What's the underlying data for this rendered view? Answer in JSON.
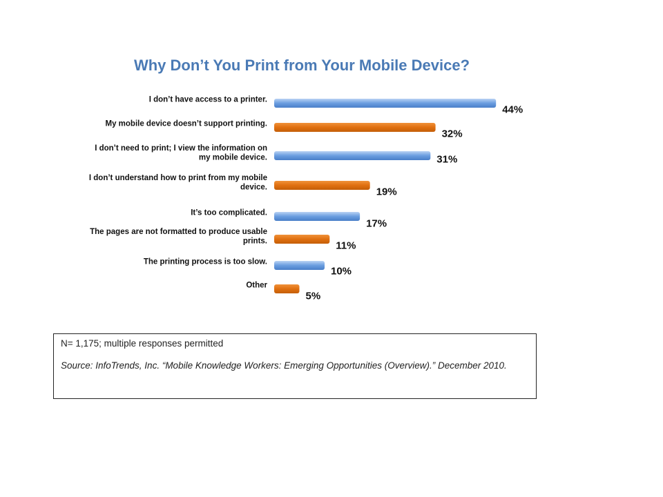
{
  "title": "Why Don’t You Print from Your Mobile Device?",
  "chart_data": {
    "type": "bar",
    "orientation": "horizontal",
    "title": "Why Don’t You Print from Your Mobile Device?",
    "categories": [
      [
        "I don’t have access to a printer."
      ],
      [
        "My mobile device doesn’t support printing."
      ],
      [
        "I don’t need to print; I view the information on",
        "my mobile device."
      ],
      [
        "I don’t understand how to print from my mobile",
        "device."
      ],
      [
        "It’s too complicated."
      ],
      [
        "The pages are not formatted to produce usable",
        "prints."
      ],
      [
        "The printing process is too slow."
      ],
      [
        "Other"
      ]
    ],
    "values": [
      44,
      32,
      31,
      19,
      17,
      11,
      10,
      5
    ],
    "value_labels": [
      "44%",
      "32%",
      "31%",
      "19%",
      "17%",
      "11%",
      "10%",
      "5%"
    ],
    "bar_colors": [
      "#6a9de0",
      "#e07010",
      "#6a9de0",
      "#e07010",
      "#6a9de0",
      "#e07010",
      "#6a9de0",
      "#e07010"
    ],
    "xlim": [
      0,
      50
    ],
    "grid": false,
    "legend": "none"
  },
  "note": {
    "sample": "N= 1,175; multiple responses permitted",
    "source": "Source: InfoTrends, Inc. “Mobile Knowledge Workers: Emerging Opportunities (Overview).” December 2010."
  }
}
